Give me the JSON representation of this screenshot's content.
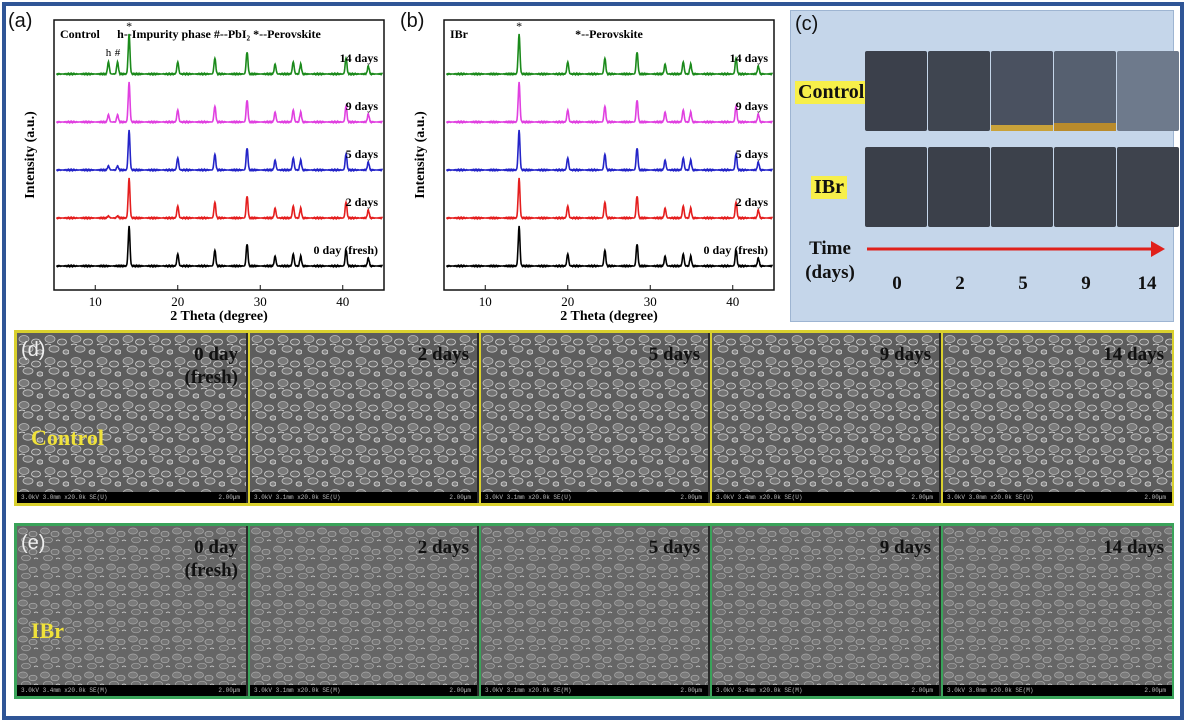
{
  "panel_a": {
    "letter": "(a)",
    "sample": "Control",
    "legend": "h--Impurity phase   #--PbI₂   *--Perovskite",
    "markers": [
      "h",
      "#",
      "*"
    ]
  },
  "panel_b": {
    "letter": "(b)",
    "sample": "IBr",
    "legend": "*--Perovskite",
    "markers": [
      "*"
    ]
  },
  "panel_c": {
    "letter": "(c)",
    "row_labels": [
      "Control",
      "IBr"
    ],
    "time_label_line1": "Time",
    "time_label_line2": "(days)",
    "days": [
      "0",
      "2",
      "5",
      "9",
      "14"
    ],
    "arrow_color": "#e0201b"
  },
  "panel_d": {
    "letter": "(d)",
    "row_label": "Control",
    "border_color": "#d9d02e",
    "cells": [
      {
        "day": "0 day",
        "day2": "(fresh)",
        "info": "3.0kV 3.0mm x20.0k SE(U)",
        "scale": "2.00µm"
      },
      {
        "day": "2 days",
        "day2": "",
        "info": "3.0kV 3.1mm x20.0k SE(U)",
        "scale": "2.00µm"
      },
      {
        "day": "5 days",
        "day2": "",
        "info": "3.0kV 3.1mm x20.0k SE(U)",
        "scale": "2.00µm"
      },
      {
        "day": "9 days",
        "day2": "",
        "info": "3.0kV 3.4mm x20.0k SE(U)",
        "scale": "2.00µm"
      },
      {
        "day": "14 days",
        "day2": "",
        "info": "3.0kV 3.0mm x20.0k SE(U)",
        "scale": "2.00µm"
      }
    ]
  },
  "panel_e": {
    "letter": "(e)",
    "row_label": "IBr",
    "border_color": "#3aa35a",
    "cells": [
      {
        "day": "0 day",
        "day2": "(fresh)",
        "info": "3.0kV 3.4mm x20.0k SE(M)",
        "scale": "2.00µm"
      },
      {
        "day": "2 days",
        "day2": "",
        "info": "3.0kV 3.1mm x20.0k SE(M)",
        "scale": "2.00µm"
      },
      {
        "day": "5 days",
        "day2": "",
        "info": "3.0kV 3.1mm x20.0k SE(M)",
        "scale": "2.00µm"
      },
      {
        "day": "9 days",
        "day2": "",
        "info": "3.0kV 3.4mm x20.0k SE(M)",
        "scale": "2.00µm"
      },
      {
        "day": "14 days",
        "day2": "",
        "info": "3.0kV 3.0mm x20.0k SE(M)",
        "scale": "2.00µm"
      }
    ]
  },
  "chart_data": [
    {
      "type": "line",
      "title": "Control",
      "xlabel": "2 Theta (degree)",
      "ylabel": "Intensity (a.u.)",
      "xlim": [
        5,
        45
      ],
      "x_ticks": [
        "10",
        "20",
        "30",
        "40"
      ],
      "peaks_2theta": [
        14.1,
        20.0,
        24.5,
        28.4,
        31.8,
        34.0,
        34.9,
        40.4,
        43.1
      ],
      "peak_heights": [
        1.0,
        0.3,
        0.4,
        0.55,
        0.25,
        0.3,
        0.25,
        0.4,
        0.2
      ],
      "impurity_peaks_2theta": [
        11.6,
        12.7
      ],
      "series": [
        {
          "name": "0 day (fresh)",
          "color": "#000000",
          "impurity": 0.0
        },
        {
          "name": "2 days",
          "color": "#e41e1e",
          "impurity": 0.05
        },
        {
          "name": "5 days",
          "color": "#2424c8",
          "impurity": 0.1
        },
        {
          "name": "9 days",
          "color": "#e040e0",
          "impurity": 0.18
        },
        {
          "name": "14 days",
          "color": "#1b8a1b",
          "impurity": 0.3
        }
      ]
    },
    {
      "type": "line",
      "title": "IBr",
      "xlabel": "2 Theta (degree)",
      "ylabel": "Intensity (a.u.)",
      "xlim": [
        5,
        45
      ],
      "x_ticks": [
        "10",
        "20",
        "30",
        "40"
      ],
      "peaks_2theta": [
        14.1,
        20.0,
        24.5,
        28.4,
        31.8,
        34.0,
        34.9,
        40.4,
        43.1
      ],
      "peak_heights": [
        1.0,
        0.3,
        0.4,
        0.55,
        0.25,
        0.3,
        0.25,
        0.4,
        0.2
      ],
      "series": [
        {
          "name": "0 day (fresh)",
          "color": "#000000",
          "impurity": 0.0
        },
        {
          "name": "2 days",
          "color": "#e41e1e",
          "impurity": 0.0
        },
        {
          "name": "5 days",
          "color": "#2424c8",
          "impurity": 0.0
        },
        {
          "name": "9 days",
          "color": "#e040e0",
          "impurity": 0.0
        },
        {
          "name": "14 days",
          "color": "#1b8a1b",
          "impurity": 0.0
        }
      ]
    }
  ]
}
